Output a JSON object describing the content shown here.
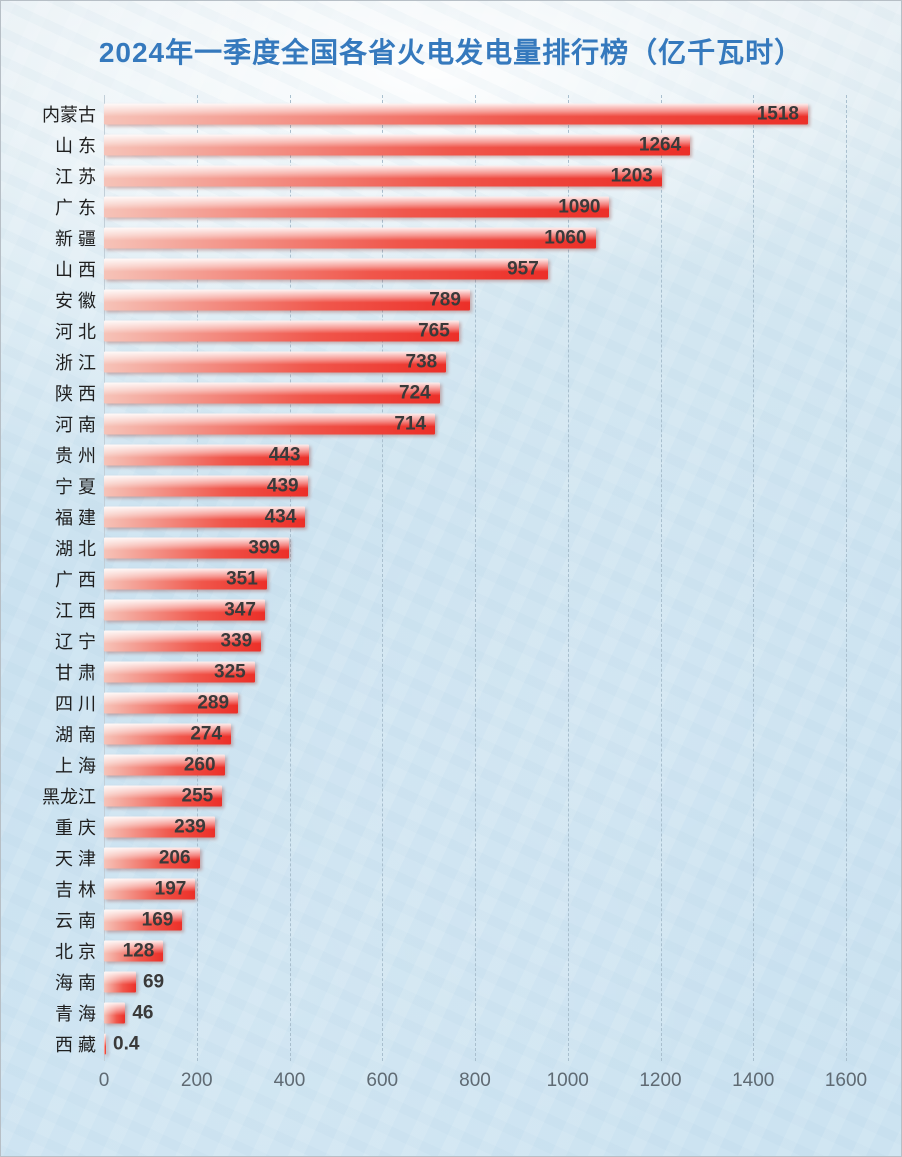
{
  "chart_data": {
    "type": "bar",
    "orientation": "horizontal",
    "title": "2024年一季度全国各省火电发电量排行榜（亿千瓦时）",
    "categories": [
      "内蒙古",
      "山 东",
      "江 苏",
      "广 东",
      "新 疆",
      "山 西",
      "安 徽",
      "河 北",
      "浙 江",
      "陕 西",
      "河 南",
      "贵 州",
      "宁 夏",
      "福 建",
      "湖 北",
      "广 西",
      "江 西",
      "辽 宁",
      "甘 肃",
      "四 川",
      "湖 南",
      "上 海",
      "黑龙江",
      "重 庆",
      "天 津",
      "吉 林",
      "云 南",
      "北 京",
      "海 南",
      "青 海",
      "西 藏"
    ],
    "values": [
      1518,
      1264,
      1203,
      1090,
      1060,
      957,
      789,
      765,
      738,
      724,
      714,
      443,
      439,
      434,
      399,
      351,
      347,
      339,
      325,
      289,
      274,
      260,
      255,
      239,
      206,
      197,
      169,
      128,
      69,
      46,
      0.4
    ],
    "value_labels": [
      "1518",
      "1264",
      "1203",
      "1090",
      "1060",
      "957",
      "789",
      "765",
      "738",
      "724",
      "714",
      "443",
      "439",
      "434",
      "399",
      "351",
      "347",
      "339",
      "325",
      "289",
      "274",
      "260",
      "255",
      "239",
      "206",
      "197",
      "169",
      "128",
      "69",
      "46",
      "0.4"
    ],
    "xlim": [
      0,
      1600
    ],
    "x_ticks": [
      "0",
      "200",
      "400",
      "600",
      "800",
      "1000",
      "1200",
      "1400",
      "1600"
    ],
    "grid": "vertical-dashed",
    "legend": "none",
    "colors": {
      "title": "#3579bd",
      "bar_gradient_start": "#f6c3b8",
      "bar_gradient_end": "#ec2f28",
      "value_label": "#3a3a3a",
      "category_label": "#1f1f1f",
      "tick_label": "#5f6a73",
      "gridline": "#a9bfce",
      "background_top": "#e6eff4",
      "background_bottom": "#c9e1f0"
    }
  }
}
